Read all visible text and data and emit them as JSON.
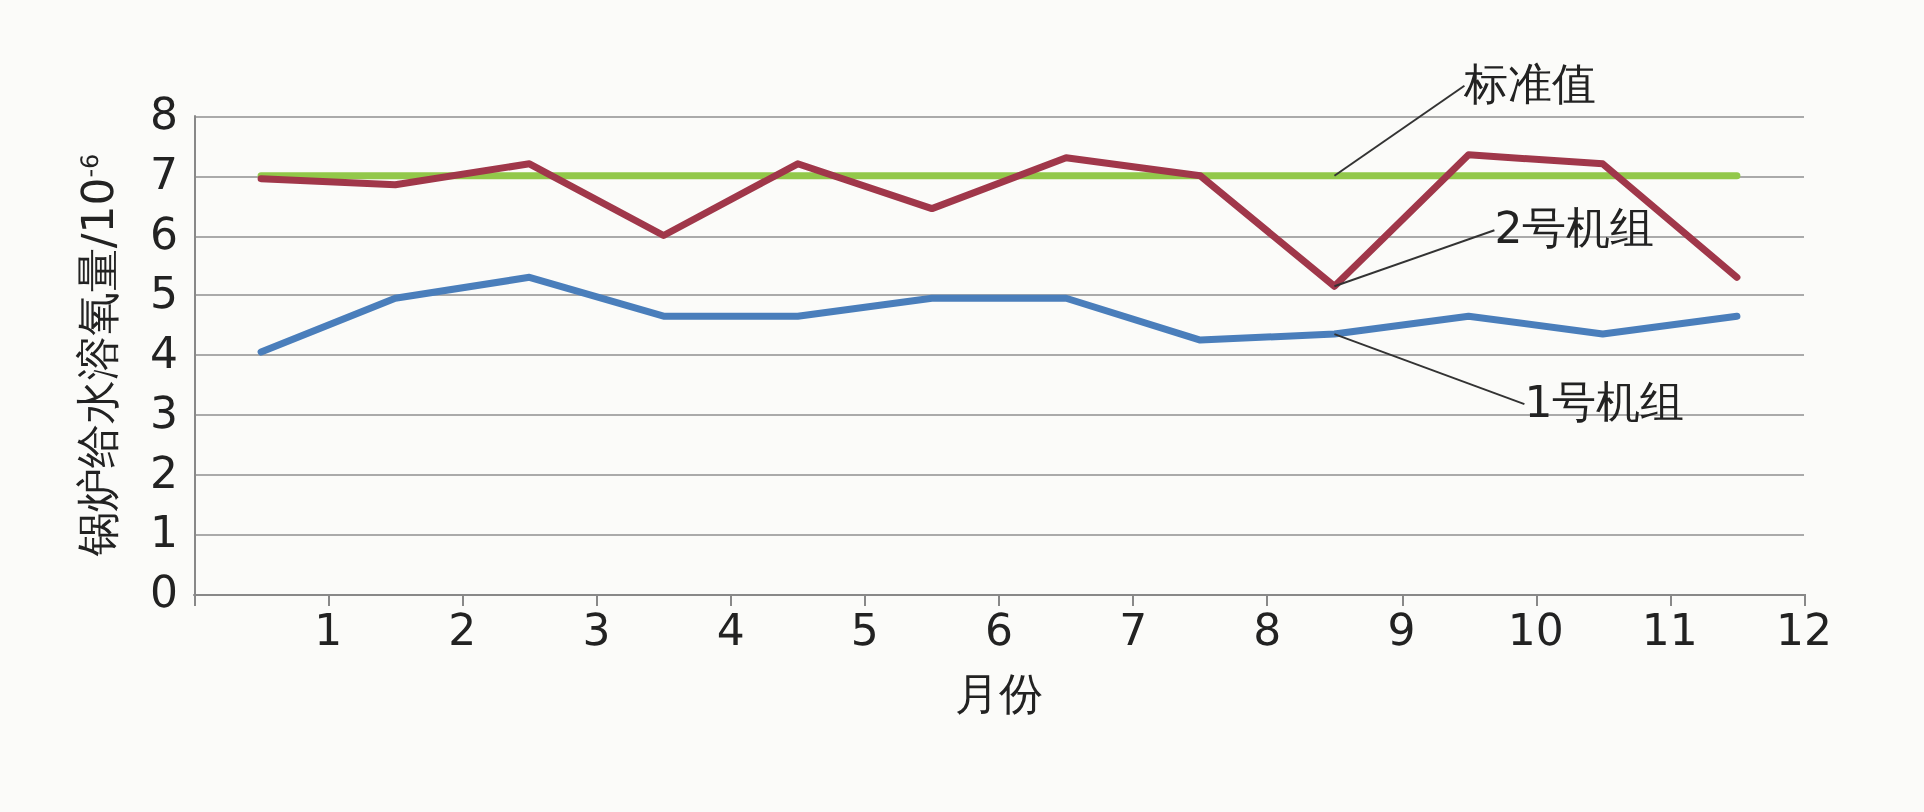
{
  "chart_data": {
    "type": "line",
    "xlabel": "月份",
    "ylabel": "锅炉给水溶氧量/10$^{-6}$",
    "xlim": [
      0,
      12
    ],
    "xticks": [
      {
        "value": 0,
        "label": null
      },
      1,
      2,
      3,
      4,
      5,
      6,
      7,
      8,
      9,
      10,
      11,
      12
    ],
    "ylim": [
      0,
      8
    ],
    "yticks": [
      0,
      1,
      2,
      3,
      4,
      5,
      6,
      7,
      8
    ],
    "grid": "y",
    "legend": false,
    "line_style": "solid",
    "x": [
      0.5,
      1.5,
      2.5,
      3.5,
      4.5,
      5.5,
      6.5,
      7.5,
      8.5,
      9.5,
      10.5,
      11.5
    ],
    "series": [
      {
        "name": "1号机组",
        "color": "#4a7ebb",
        "values": [
          4.05,
          4.95,
          5.3,
          4.65,
          4.65,
          4.95,
          4.95,
          4.25,
          4.35,
          4.65,
          4.35,
          4.65
        ]
      },
      {
        "name": "2号机组",
        "color": "#a0374a",
        "values": [
          6.95,
          6.85,
          7.2,
          6.0,
          7.2,
          6.45,
          7.3,
          7.0,
          5.15,
          7.35,
          7.2,
          5.3
        ]
      },
      {
        "name": "标准值",
        "color": "#92c84a",
        "values": [
          7,
          7,
          7,
          7,
          7,
          7,
          7,
          7,
          7,
          7,
          7,
          7
        ]
      }
    ]
  }
}
